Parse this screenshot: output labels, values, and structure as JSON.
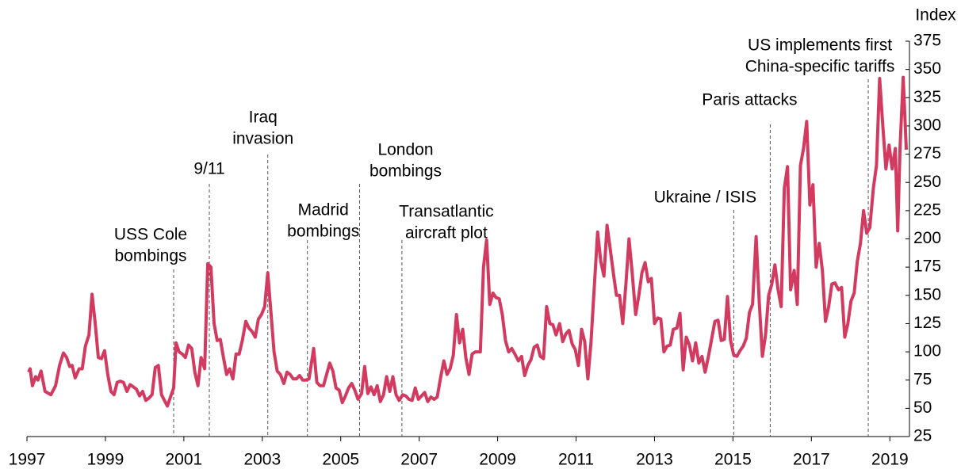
{
  "chart_data": {
    "type": "line",
    "y_axis_label": "Index",
    "xlim": [
      1997,
      2019.5
    ],
    "xticks": [
      1997,
      1999,
      2001,
      2003,
      2005,
      2007,
      2009,
      2011,
      2013,
      2015,
      2017,
      2019
    ],
    "ylim": [
      25,
      375
    ],
    "yticks": [
      25,
      50,
      75,
      100,
      125,
      150,
      175,
      200,
      225,
      250,
      275,
      300,
      325,
      350,
      375
    ],
    "annotations": [
      {
        "x": 2000.74,
        "label": [
          "USS Cole",
          "bombings"
        ]
      },
      {
        "x": 2001.65,
        "label": [
          "9/11"
        ]
      },
      {
        "x": 2003.14,
        "label": [
          "Iraq",
          "invasion"
        ]
      },
      {
        "x": 2004.15,
        "label": [
          "Madrid",
          "bombings"
        ]
      },
      {
        "x": 2005.48,
        "label": [
          "London",
          "bombings"
        ]
      },
      {
        "x": 2006.56,
        "label": [
          "Transatlantic",
          "aircraft plot"
        ]
      },
      {
        "x": 2015.02,
        "label": [
          "Ukraine / ISIS"
        ]
      },
      {
        "x": 2015.95,
        "label": [
          "Paris attacks"
        ]
      },
      {
        "x": 2018.45,
        "label": [
          "US implements first",
          "China-specific tariffs"
        ]
      }
    ],
    "series": [
      {
        "color": "#d23a60",
        "x": [
          1997.04,
          1997.08,
          1997.14,
          1997.22,
          1997.28,
          1997.36,
          1997.46,
          1997.61,
          1997.73,
          1997.83,
          1997.93,
          1998.01,
          1998.09,
          1998.15,
          1998.23,
          1998.33,
          1998.41,
          1998.49,
          1998.58,
          1998.66,
          1998.74,
          1998.82,
          1998.9,
          1998.98,
          1999.06,
          1999.14,
          1999.22,
          1999.3,
          1999.38,
          1999.46,
          1999.55,
          1999.63,
          1999.71,
          1999.79,
          1999.87,
          1999.95,
          2000.03,
          2000.11,
          2000.19,
          2000.27,
          2000.35,
          2000.43,
          2000.52,
          2000.58,
          2000.66,
          2000.74,
          2000.8,
          2000.88,
          2000.96,
          2001.04,
          2001.12,
          2001.2,
          2001.28,
          2001.36,
          2001.44,
          2001.53,
          2001.61,
          2001.69,
          2001.77,
          2001.85,
          2001.93,
          2002.01,
          2002.09,
          2002.17,
          2002.25,
          2002.33,
          2002.41,
          2002.49,
          2002.58,
          2002.66,
          2002.74,
          2002.82,
          2002.9,
          2002.98,
          2003.06,
          2003.14,
          2003.22,
          2003.3,
          2003.38,
          2003.46,
          2003.55,
          2003.63,
          2003.71,
          2003.79,
          2003.87,
          2003.95,
          2004.03,
          2004.11,
          2004.19,
          2004.31,
          2004.39,
          2004.47,
          2004.56,
          2004.64,
          2004.72,
          2004.8,
          2004.88,
          2004.96,
          2005.04,
          2005.12,
          2005.2,
          2005.28,
          2005.36,
          2005.44,
          2005.53,
          2005.61,
          2005.69,
          2005.77,
          2005.85,
          2005.93,
          2006.01,
          2006.09,
          2006.17,
          2006.25,
          2006.33,
          2006.41,
          2006.49,
          2006.58,
          2006.66,
          2006.74,
          2006.82,
          2006.9,
          2006.98,
          2007.06,
          2007.14,
          2007.22,
          2007.3,
          2007.38,
          2007.46,
          2007.55,
          2007.63,
          2007.71,
          2007.79,
          2007.87,
          2007.95,
          2008.03,
          2008.11,
          2008.19,
          2008.27,
          2008.35,
          2008.43,
          2008.56,
          2008.64,
          2008.72,
          2008.8,
          2008.88,
          2008.96,
          2009.04,
          2009.12,
          2009.2,
          2009.28,
          2009.36,
          2009.44,
          2009.53,
          2009.61,
          2009.69,
          2009.77,
          2009.85,
          2009.93,
          2010.01,
          2010.09,
          2010.17,
          2010.25,
          2010.33,
          2010.41,
          2010.49,
          2010.58,
          2010.66,
          2010.74,
          2010.82,
          2010.9,
          2010.98,
          2011.06,
          2011.14,
          2011.22,
          2011.3,
          2011.38,
          2011.46,
          2011.55,
          2011.63,
          2011.71,
          2011.79,
          2011.87,
          2011.95,
          2012.03,
          2012.11,
          2012.19,
          2012.27,
          2012.35,
          2012.43,
          2012.52,
          2012.6,
          2012.68,
          2012.76,
          2012.84,
          2012.92,
          2013.0,
          2013.08,
          2013.16,
          2013.24,
          2013.32,
          2013.4,
          2013.48,
          2013.57,
          2013.65,
          2013.73,
          2013.81,
          2013.89,
          2013.97,
          2014.05,
          2014.13,
          2014.21,
          2014.29,
          2014.37,
          2014.45,
          2014.54,
          2014.62,
          2014.7,
          2014.78,
          2014.86,
          2014.94,
          2015.02,
          2015.1,
          2015.18,
          2015.26,
          2015.34,
          2015.42,
          2015.5,
          2015.59,
          2015.67,
          2015.75,
          2015.83,
          2015.91,
          2015.99,
          2016.07,
          2016.15,
          2016.23,
          2016.31,
          2016.39,
          2016.47,
          2016.56,
          2016.64,
          2016.72,
          2016.8,
          2016.88,
          2016.96,
          2017.04,
          2017.12,
          2017.2,
          2017.28,
          2017.36,
          2017.44,
          2017.52,
          2017.6,
          2017.69,
          2017.77,
          2017.85,
          2017.93,
          2018.01,
          2018.09,
          2018.17,
          2018.25,
          2018.33,
          2018.41,
          2018.49,
          2018.58,
          2018.66,
          2018.74,
          2018.82,
          2018.9,
          2018.98,
          2019.06,
          2019.14,
          2019.2,
          2019.26,
          2019.34,
          2019.42
        ],
        "values": [
          82,
          85,
          70,
          78,
          75,
          83,
          65,
          62,
          70,
          88,
          99,
          95,
          87,
          88,
          77,
          85,
          85,
          105,
          115,
          151,
          125,
          95,
          94,
          101,
          80,
          65,
          62,
          73,
          74,
          73,
          65,
          71,
          69,
          67,
          61,
          65,
          57,
          59,
          62,
          86,
          88,
          62,
          56,
          52,
          60,
          68,
          108,
          100,
          98,
          95,
          106,
          103,
          82,
          70,
          95,
          85,
          178,
          175,
          125,
          110,
          111,
          95,
          80,
          85,
          76,
          98,
          98,
          110,
          127,
          121,
          118,
          113,
          129,
          133,
          140,
          170,
          135,
          100,
          83,
          80,
          72,
          82,
          80,
          76,
          76,
          79,
          75,
          75,
          76,
          103,
          73,
          70,
          70,
          80,
          90,
          83,
          68,
          66,
          55,
          61,
          68,
          72,
          66,
          58,
          63,
          87,
          63,
          69,
          62,
          70,
          56,
          62,
          78,
          65,
          78,
          62,
          57,
          62,
          61,
          58,
          57,
          68,
          58,
          61,
          64,
          56,
          60,
          58,
          60,
          78,
          92,
          80,
          85,
          97,
          133,
          108,
          120,
          95,
          80,
          98,
          100,
          100,
          175,
          199,
          142,
          152,
          148,
          147,
          133,
          110,
          100,
          103,
          98,
          92,
          96,
          79,
          88,
          93,
          104,
          106,
          96,
          94,
          140,
          125,
          124,
          115,
          125,
          109,
          116,
          119,
          107,
          102,
          88,
          120,
          109,
          76,
          108,
          155,
          206,
          180,
          167,
          212,
          191,
          170,
          150,
          150,
          125,
          160,
          200,
          170,
          133,
          150,
          170,
          179,
          162,
          165,
          125,
          130,
          129,
          100,
          105,
          106,
          120,
          121,
          134,
          84,
          113,
          106,
          92,
          108,
          90,
          96,
          82,
          95,
          110,
          127,
          128,
          110,
          111,
          149,
          110,
          97,
          96,
          101,
          105,
          112,
          135,
          142,
          202,
          145,
          96,
          115,
          150,
          160,
          177,
          155,
          140,
          245,
          264,
          155,
          172,
          142,
          265,
          280,
          304,
          230,
          248,
          175,
          196,
          172,
          127,
          140,
          160,
          161,
          155,
          157,
          113,
          125,
          145,
          152,
          180,
          196,
          225,
          205,
          210,
          245,
          265,
          342,
          300,
          262,
          283,
          262,
          280,
          207,
          280,
          343,
          279
        ]
      }
    ]
  }
}
